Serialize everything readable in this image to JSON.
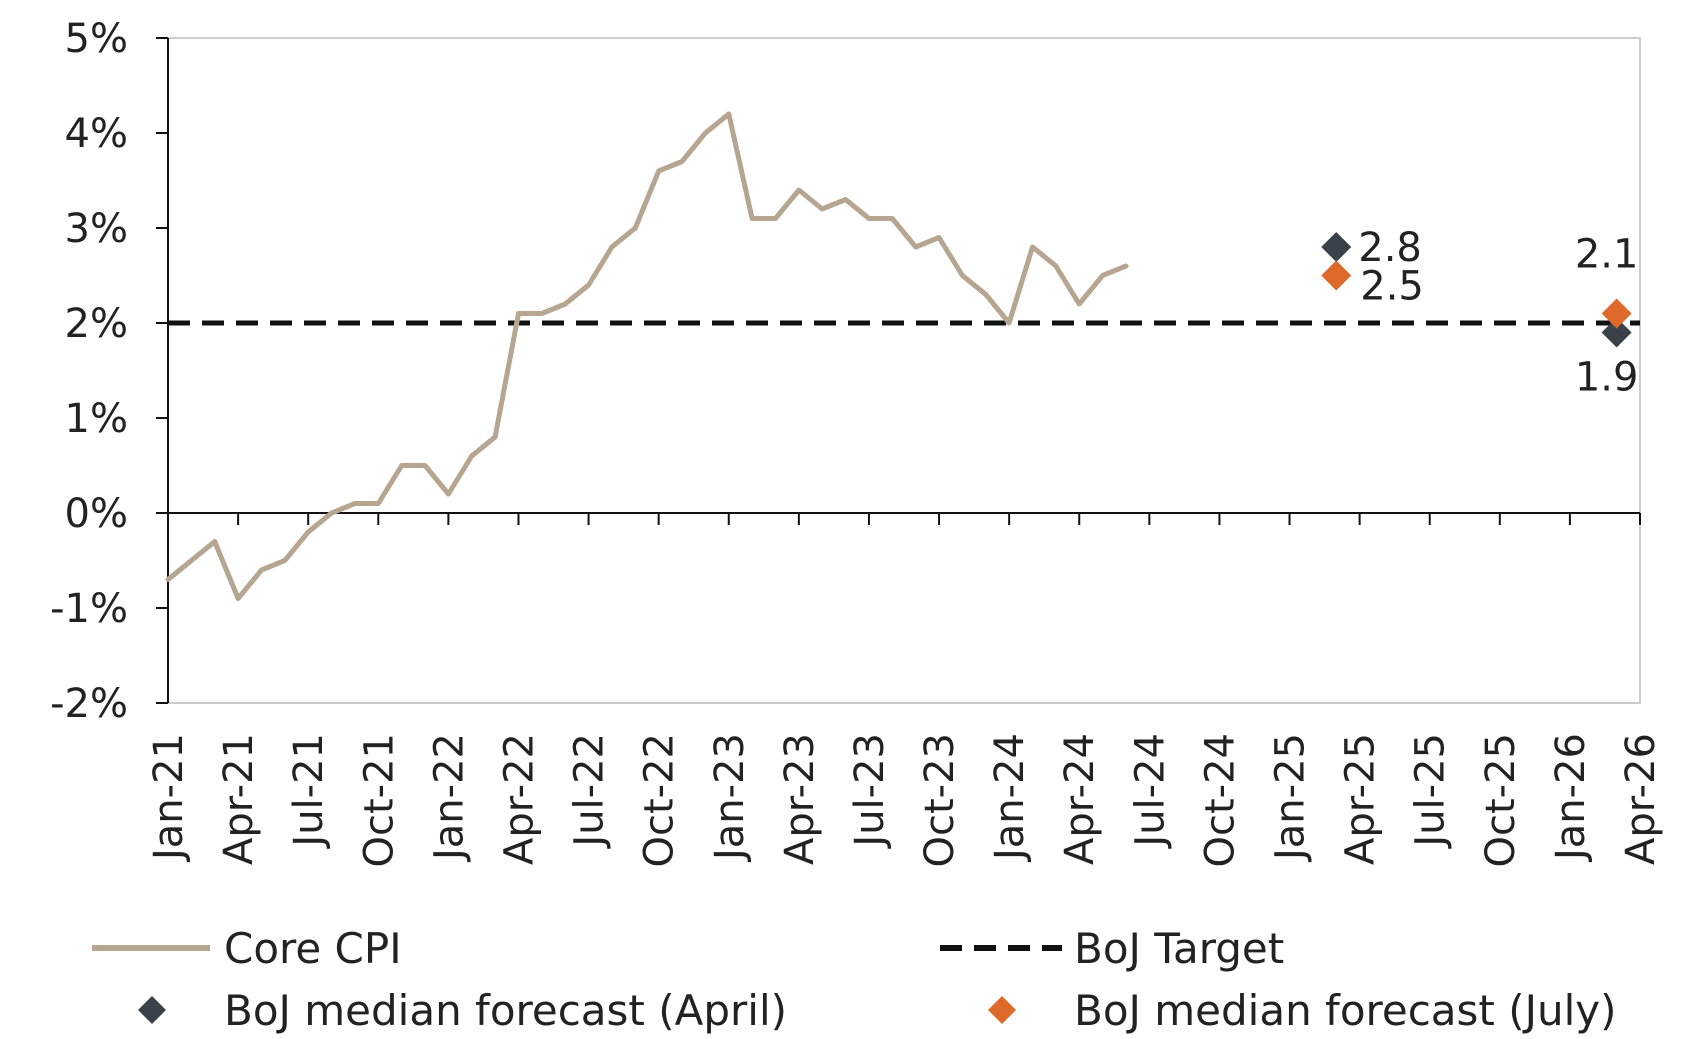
{
  "chart_data": {
    "type": "line",
    "title": "",
    "xlabel": "",
    "ylabel": "",
    "ylim": [
      -2,
      5
    ],
    "y_ticks": [
      {
        "value": 5,
        "label": "5%"
      },
      {
        "value": 4,
        "label": "4%"
      },
      {
        "value": 3,
        "label": "3%"
      },
      {
        "value": 2,
        "label": "2%"
      },
      {
        "value": 1,
        "label": "1%"
      },
      {
        "value": 0,
        "label": "0%"
      },
      {
        "value": -1,
        "label": "-1%"
      },
      {
        "value": -2,
        "label": "-2%"
      }
    ],
    "x_ticks": [
      "Jan-21",
      "Apr-21",
      "Jul-21",
      "Oct-21",
      "Jan-22",
      "Apr-22",
      "Jul-22",
      "Oct-22",
      "Jan-23",
      "Apr-23",
      "Jul-23",
      "Oct-23",
      "Jan-24",
      "Apr-24",
      "Jul-24",
      "Oct-24",
      "Jan-25",
      "Apr-25",
      "Jul-25",
      "Oct-25",
      "Jan-26",
      "Apr-26"
    ],
    "legend_position": "bottom",
    "grid": false,
    "series": [
      {
        "name": "Core CPI",
        "color": "#b5a591",
        "style": "line",
        "values": [
          -0.7,
          -0.5,
          -0.3,
          -0.9,
          -0.6,
          -0.5,
          -0.2,
          0.0,
          0.1,
          0.1,
          0.5,
          0.5,
          0.2,
          0.6,
          0.8,
          2.1,
          2.1,
          2.2,
          2.4,
          2.8,
          3.0,
          3.6,
          3.7,
          4.0,
          4.2,
          3.1,
          3.1,
          3.4,
          3.2,
          3.3,
          3.1,
          3.1,
          2.8,
          2.9,
          2.5,
          2.3,
          2.0,
          2.8,
          2.6,
          2.2,
          2.5,
          2.6
        ]
      },
      {
        "name": "BoJ Target",
        "color": "#111111",
        "style": "dashed",
        "value": 2
      }
    ],
    "forecasts": [
      {
        "name": "BoJ median forecast (April)",
        "color": "#3a4148",
        "points": [
          {
            "date": "Mar-25",
            "value": 2.8,
            "label": "2.8"
          },
          {
            "date": "Mar-26",
            "value": 1.9,
            "label": "1.9"
          }
        ]
      },
      {
        "name": "BoJ median forecast (July)",
        "color": "#dd6a2b",
        "points": [
          {
            "date": "Mar-25",
            "value": 2.5,
            "label": "2.5"
          },
          {
            "date": "Mar-26",
            "value": 2.1,
            "label": "2.1"
          }
        ]
      }
    ]
  }
}
